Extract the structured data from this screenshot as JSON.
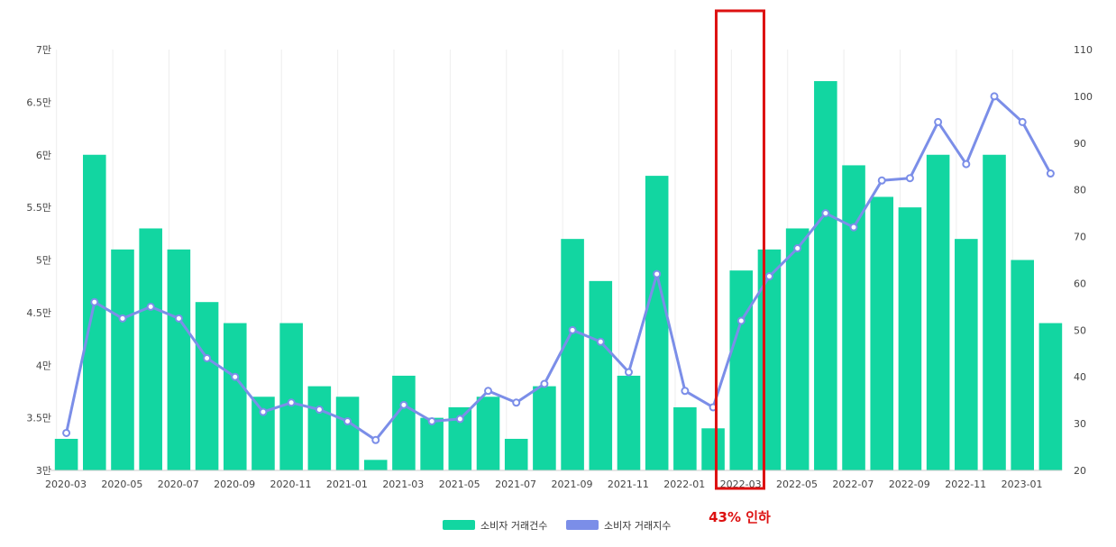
{
  "chart_data": {
    "type": "bar+line",
    "months": [
      "2020-03",
      "2020-04",
      "2020-05",
      "2020-06",
      "2020-07",
      "2020-08",
      "2020-09",
      "2020-10",
      "2020-11",
      "2020-12",
      "2021-01",
      "2021-02",
      "2021-03",
      "2021-04",
      "2021-05",
      "2021-06",
      "2021-07",
      "2021-08",
      "2021-09",
      "2021-10",
      "2021-11",
      "2021-12",
      "2022-01",
      "2022-02",
      "2022-03",
      "2022-04",
      "2022-05",
      "2022-06",
      "2022-07",
      "2022-08",
      "2022-09",
      "2022-10",
      "2022-11",
      "2022-12",
      "2023-01",
      "2023-02"
    ],
    "x_tick_labels": [
      "2020-03",
      "2020-05",
      "2020-07",
      "2020-09",
      "2020-11",
      "2021-01",
      "2021-03",
      "2021-05",
      "2021-07",
      "2021-09",
      "2021-11",
      "2022-01",
      "2022-03",
      "2022-05",
      "2022-07",
      "2022-09",
      "2022-11",
      "2023-01"
    ],
    "series": [
      {
        "name": "소비자 거래건수",
        "type": "bar",
        "axis": "left",
        "color": "#12d6a1",
        "values": [
          33000,
          60000,
          51000,
          53000,
          51000,
          46000,
          44000,
          37000,
          44000,
          38000,
          37000,
          31000,
          39000,
          35000,
          36000,
          37000,
          33000,
          38000,
          52000,
          48000,
          39000,
          58000,
          36000,
          34000,
          49000,
          51000,
          53000,
          67000,
          59000,
          56000,
          55000,
          60000,
          52000,
          60000,
          50000,
          44000
        ]
      },
      {
        "name": "소비자 거래지수",
        "type": "line",
        "axis": "right",
        "color": "#7b8ee8",
        "values": [
          28,
          56,
          52.5,
          55,
          52.5,
          44,
          40,
          32.5,
          34.5,
          33,
          30.5,
          26.5,
          34,
          30.5,
          31,
          37,
          34.5,
          38.5,
          50,
          47.5,
          41,
          62,
          37,
          33.5,
          52,
          61.5,
          67.5,
          75,
          72,
          82,
          82.5,
          94.5,
          85.5,
          100,
          94.5,
          83.5
        ]
      }
    ],
    "y_left": {
      "min": 30000,
      "max": 70000,
      "tick_labels": [
        "3만",
        "3.5만",
        "4만",
        "4.5만",
        "5만",
        "5.5만",
        "6만",
        "6.5만",
        "7만"
      ]
    },
    "y_right": {
      "min": 20,
      "max": 110,
      "tick_labels": [
        "20",
        "30",
        "40",
        "50",
        "60",
        "70",
        "80",
        "90",
        "100",
        "110"
      ]
    },
    "legend": {
      "position": "bottom-center"
    },
    "annotation": {
      "text": "43% 인하",
      "month": "2022-03",
      "color": "#dd1111"
    }
  }
}
